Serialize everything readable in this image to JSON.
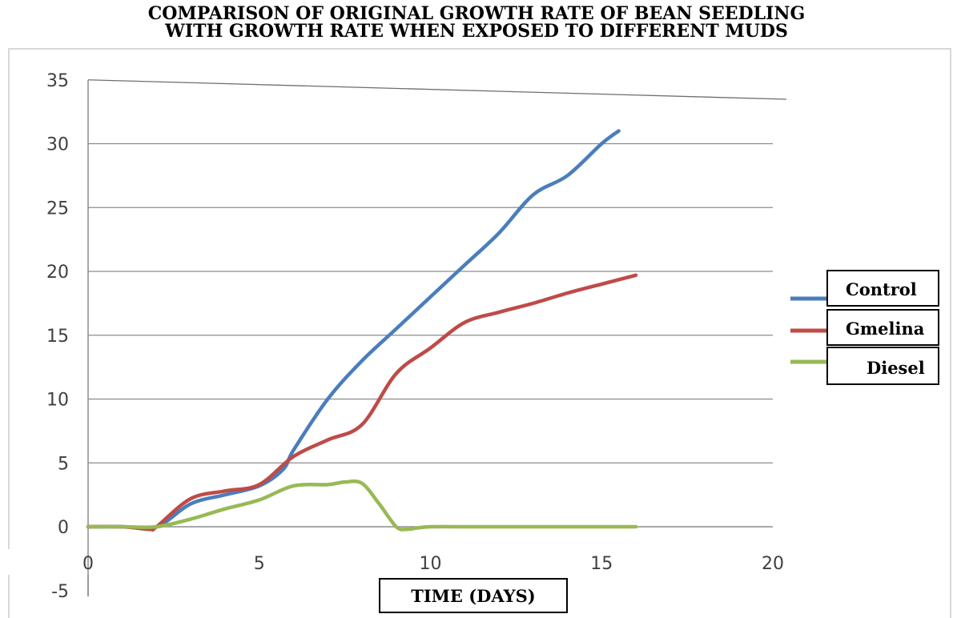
{
  "chart_data": {
    "type": "line",
    "title_line1": "COMPARISON OF ORIGINAL GROWTH RATE OF BEAN SEEDLING",
    "title_line2": "WITH GROWTH RATE WHEN EXPOSED TO DIFFERENT MUDS",
    "xlabel": "TIME (DAYS)",
    "ylabel": "",
    "xlim": [
      0,
      20
    ],
    "ylim": [
      -5,
      35
    ],
    "xticks": [
      0,
      5,
      10,
      15,
      20
    ],
    "yticks": [
      -5,
      0,
      5,
      10,
      15,
      20,
      25,
      30,
      35
    ],
    "grid": true,
    "legend_position": "right",
    "series": [
      {
        "name": "Control",
        "color": "#4a7ebb",
        "x": [
          0,
          1,
          2,
          3,
          4,
          5,
          5.7,
          6,
          7,
          8,
          9,
          10,
          11,
          12,
          13,
          14,
          15,
          15.5
        ],
        "y": [
          0,
          0,
          0,
          1.8,
          2.5,
          3.2,
          4.5,
          6,
          10,
          13,
          15.5,
          18,
          20.5,
          23,
          26,
          27.5,
          30,
          31
        ]
      },
      {
        "name": "Gmelina",
        "color": "#be4b48",
        "x": [
          0,
          1,
          1.8,
          2,
          3,
          4,
          5,
          6,
          7,
          8,
          9,
          10,
          11,
          12,
          13,
          14,
          15,
          16
        ],
        "y": [
          0,
          0,
          -0.2,
          0,
          2.2,
          2.8,
          3.3,
          5.5,
          6.8,
          8,
          12,
          14,
          16,
          16.8,
          17.5,
          18.3,
          19,
          19.7
        ]
      },
      {
        "name": "Diesel",
        "color": "#98b954",
        "x": [
          0,
          1,
          2,
          3,
          4,
          5,
          6,
          7,
          7.5,
          8,
          8.5,
          9,
          9.3,
          9.6,
          10,
          11,
          12,
          13,
          14,
          15,
          16
        ],
        "y": [
          0,
          0,
          0,
          0.6,
          1.4,
          2.1,
          3.2,
          3.3,
          3.5,
          3.4,
          1.8,
          0,
          -0.2,
          -0.1,
          0,
          0,
          0,
          0,
          0,
          0,
          0
        ]
      }
    ]
  }
}
